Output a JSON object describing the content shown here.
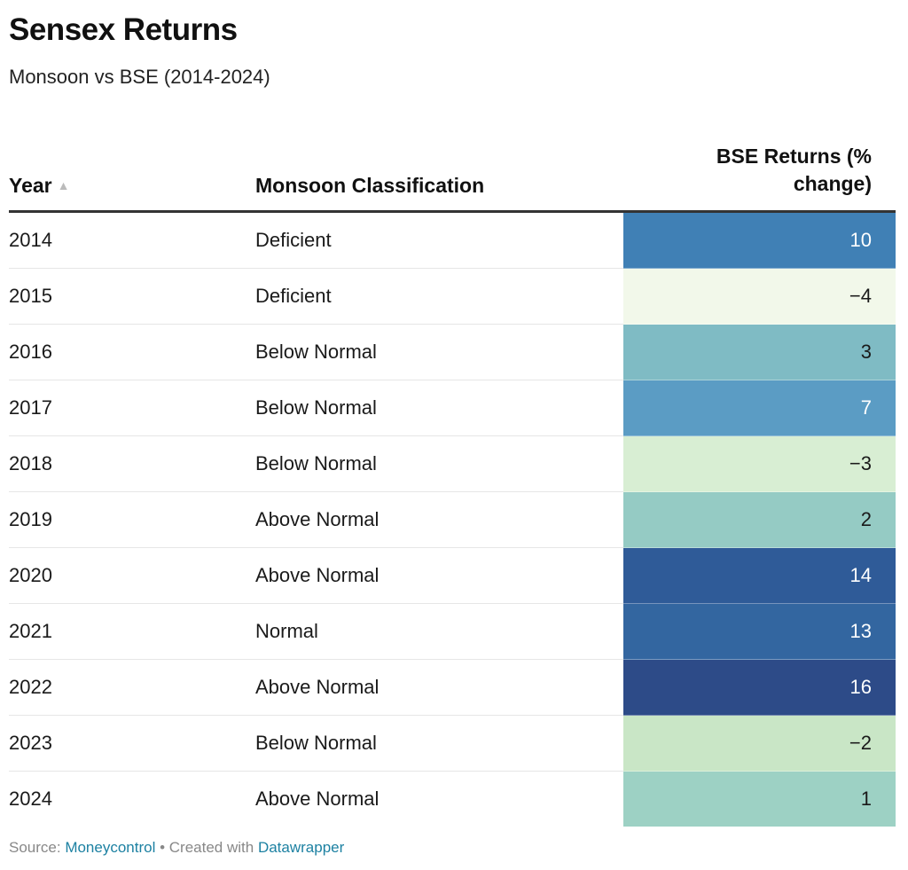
{
  "header": {
    "title": "Sensex Returns",
    "subtitle": "Monsoon vs BSE (2014-2024)"
  },
  "table": {
    "columns": {
      "year": "Year",
      "monsoon": "Monsoon Classification",
      "returns": "BSE Returns (% change)",
      "returns_line1": "BSE Returns (%",
      "returns_line2": "change)"
    },
    "sort_icon": "sort-ascending-icon"
  },
  "chart_data": {
    "type": "table",
    "title": "Sensex Returns",
    "subtitle": "Monsoon vs BSE (2014-2024)",
    "columns": [
      "Year",
      "Monsoon Classification",
      "BSE Returns (% change)"
    ],
    "rows": [
      {
        "year": "2014",
        "monsoon": "Deficient",
        "returns": 10,
        "returns_label": "10",
        "color": "#4080b5",
        "text_color": "#ffffff"
      },
      {
        "year": "2015",
        "monsoon": "Deficient",
        "returns": -4,
        "returns_label": "−4",
        "color": "#f2f8ea",
        "text_color": "#1a1a1a"
      },
      {
        "year": "2016",
        "monsoon": "Below Normal",
        "returns": 3,
        "returns_label": "3",
        "color": "#7fbbc4",
        "text_color": "#1a1a1a"
      },
      {
        "year": "2017",
        "monsoon": "Below Normal",
        "returns": 7,
        "returns_label": "7",
        "color": "#5b9cc4",
        "text_color": "#ffffff"
      },
      {
        "year": "2018",
        "monsoon": "Below Normal",
        "returns": -3,
        "returns_label": "−3",
        "color": "#d8eed3",
        "text_color": "#1a1a1a"
      },
      {
        "year": "2019",
        "monsoon": "Above Normal",
        "returns": 2,
        "returns_label": "2",
        "color": "#95cbc4",
        "text_color": "#1a1a1a"
      },
      {
        "year": "2020",
        "monsoon": "Above Normal",
        "returns": 14,
        "returns_label": "14",
        "color": "#2f5b98",
        "text_color": "#ffffff"
      },
      {
        "year": "2021",
        "monsoon": "Normal",
        "returns": 13,
        "returns_label": "13",
        "color": "#3366a0",
        "text_color": "#ffffff"
      },
      {
        "year": "2022",
        "monsoon": "Above Normal",
        "returns": 16,
        "returns_label": "16",
        "color": "#2d4b88",
        "text_color": "#ffffff"
      },
      {
        "year": "2023",
        "monsoon": "Below Normal",
        "returns": -2,
        "returns_label": "−2",
        "color": "#c9e6c6",
        "text_color": "#1a1a1a"
      },
      {
        "year": "2024",
        "monsoon": "Above Normal",
        "returns": 1,
        "returns_label": "1",
        "color": "#9dd1c4",
        "text_color": "#1a1a1a"
      }
    ]
  },
  "footer": {
    "source_prefix": "Source: ",
    "source_link": "Moneycontrol",
    "separator": " • Created with ",
    "created_link": "Datawrapper"
  }
}
